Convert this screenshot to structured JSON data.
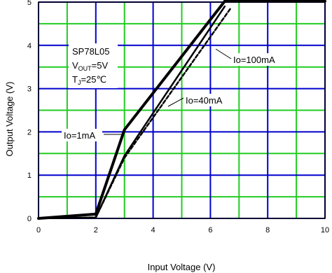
{
  "chart_data": {
    "type": "line",
    "title": "",
    "xlabel": "Input Voltage (V)",
    "ylabel": "Output Voltage (V)",
    "xlim": [
      0,
      10
    ],
    "ylim": [
      0,
      5
    ],
    "x_ticks": [
      "0",
      "2",
      "4",
      "6",
      "8",
      "10"
    ],
    "y_ticks": [
      "0",
      "1",
      "2",
      "3",
      "4",
      "5"
    ],
    "grid": true,
    "colors": {
      "major_grid": "#0000cc",
      "minor_grid": "#22cc22",
      "series": "#000000",
      "frame": "#000000"
    },
    "conditions": {
      "part": "SP78L05",
      "vout_prefix": "V",
      "vout_sub": "OUT",
      "vout_suffix": "=5V",
      "tj_prefix": "T",
      "tj_sub": "J",
      "tj_suffix": "=25℃"
    },
    "series": [
      {
        "name": "Io=1mA",
        "style": "solid-thick",
        "x": [
          0,
          2,
          3,
          6.5,
          10
        ],
        "y": [
          0,
          0.1,
          2.05,
          5.02,
          5.02
        ]
      },
      {
        "name": "Io=40mA",
        "style": "solid",
        "x": [
          0,
          2,
          3,
          6.5
        ],
        "y": [
          0,
          0.02,
          1.45,
          4.9
        ]
      },
      {
        "name": "Io=100mA",
        "style": "dashed",
        "x": [
          0,
          2,
          3,
          6.7
        ],
        "y": [
          0,
          0.02,
          1.4,
          4.85
        ]
      }
    ],
    "annotations": [
      {
        "text": "Io=1mA",
        "series": 0
      },
      {
        "text": "Io=40mA",
        "series": 1
      },
      {
        "text": "Io=100mA",
        "series": 2
      }
    ]
  }
}
